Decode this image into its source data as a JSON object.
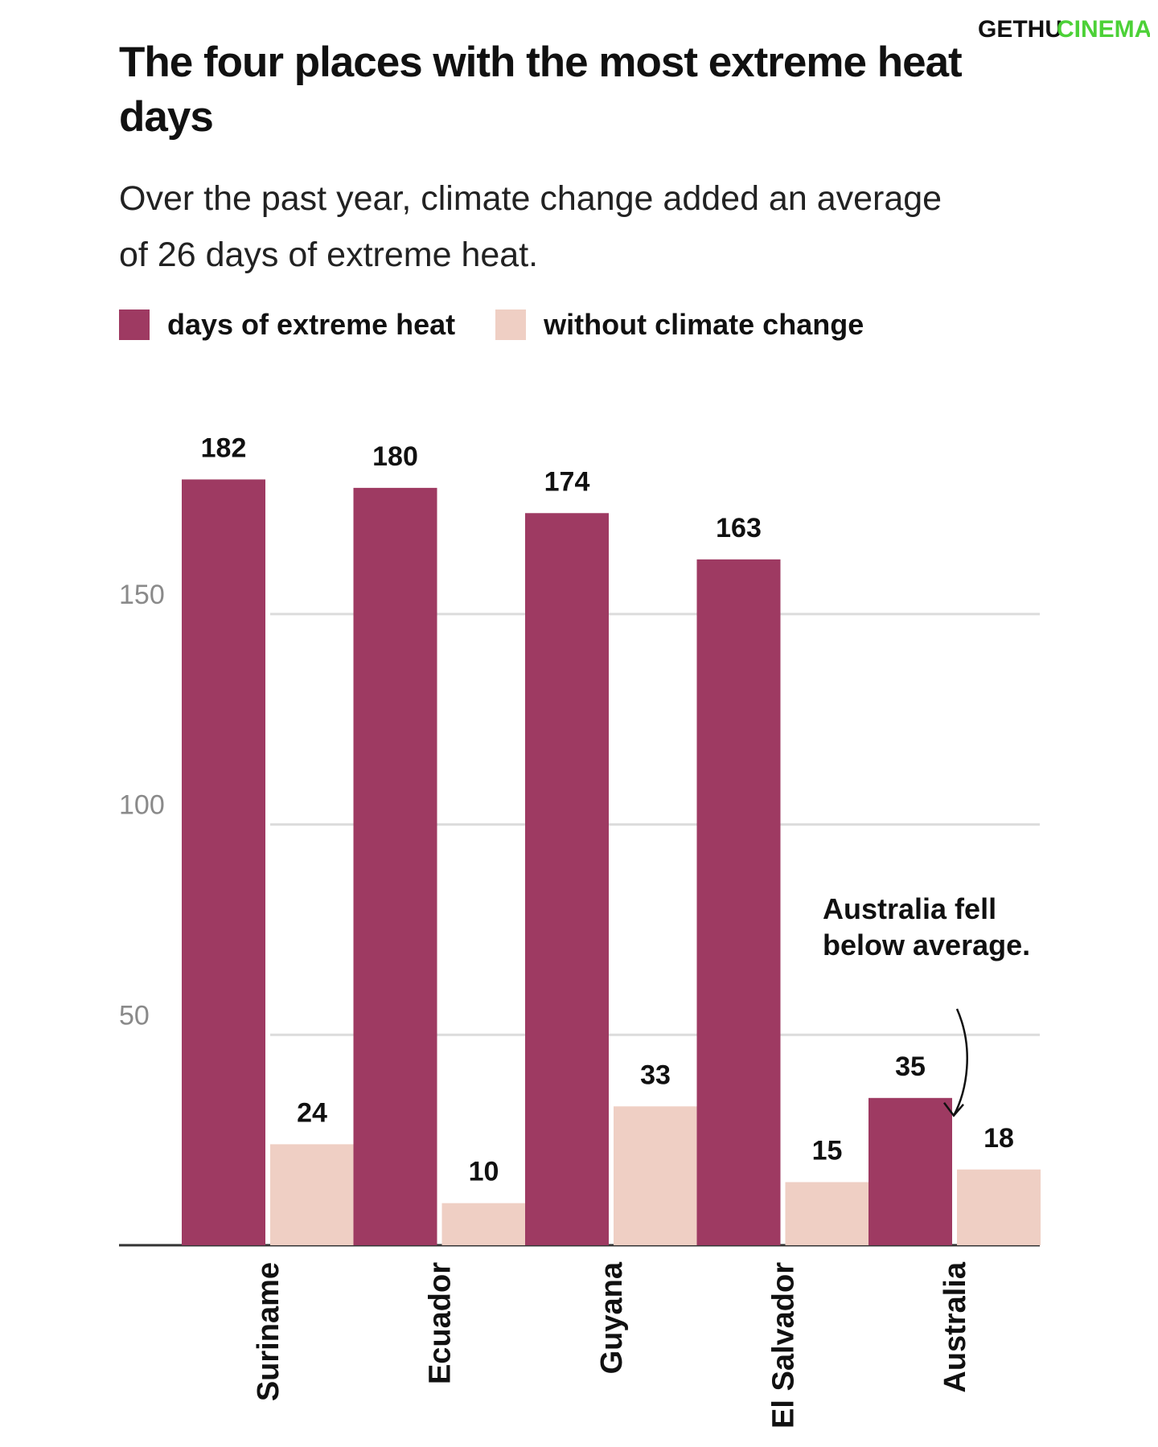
{
  "watermark": {
    "text_a": "GETHU",
    "text_b": "CINEMA",
    "color_a": "#111111",
    "color_b": "#4cd137"
  },
  "chart_data": {
    "type": "bar",
    "title": "The four places with the most extreme heat days",
    "subtitle": "Over the past year, climate change added an average of 26 days of extreme heat.",
    "categories": [
      "Suriname",
      "Ecuador",
      "Guyana",
      "El Salvador",
      "Australia"
    ],
    "series": [
      {
        "name": "days of extreme heat",
        "color": "#9e3a62",
        "values": [
          182,
          180,
          174,
          163,
          35
        ]
      },
      {
        "name": "without climate change",
        "color": "#efcfc4",
        "values": [
          24,
          10,
          33,
          15,
          18
        ]
      }
    ],
    "ylim": [
      0,
      185
    ],
    "yticks": [
      50,
      100,
      150
    ],
    "grid": true,
    "legend": "top-left",
    "annotation": {
      "text": "Australia fell below average.",
      "target": "Australia"
    }
  }
}
